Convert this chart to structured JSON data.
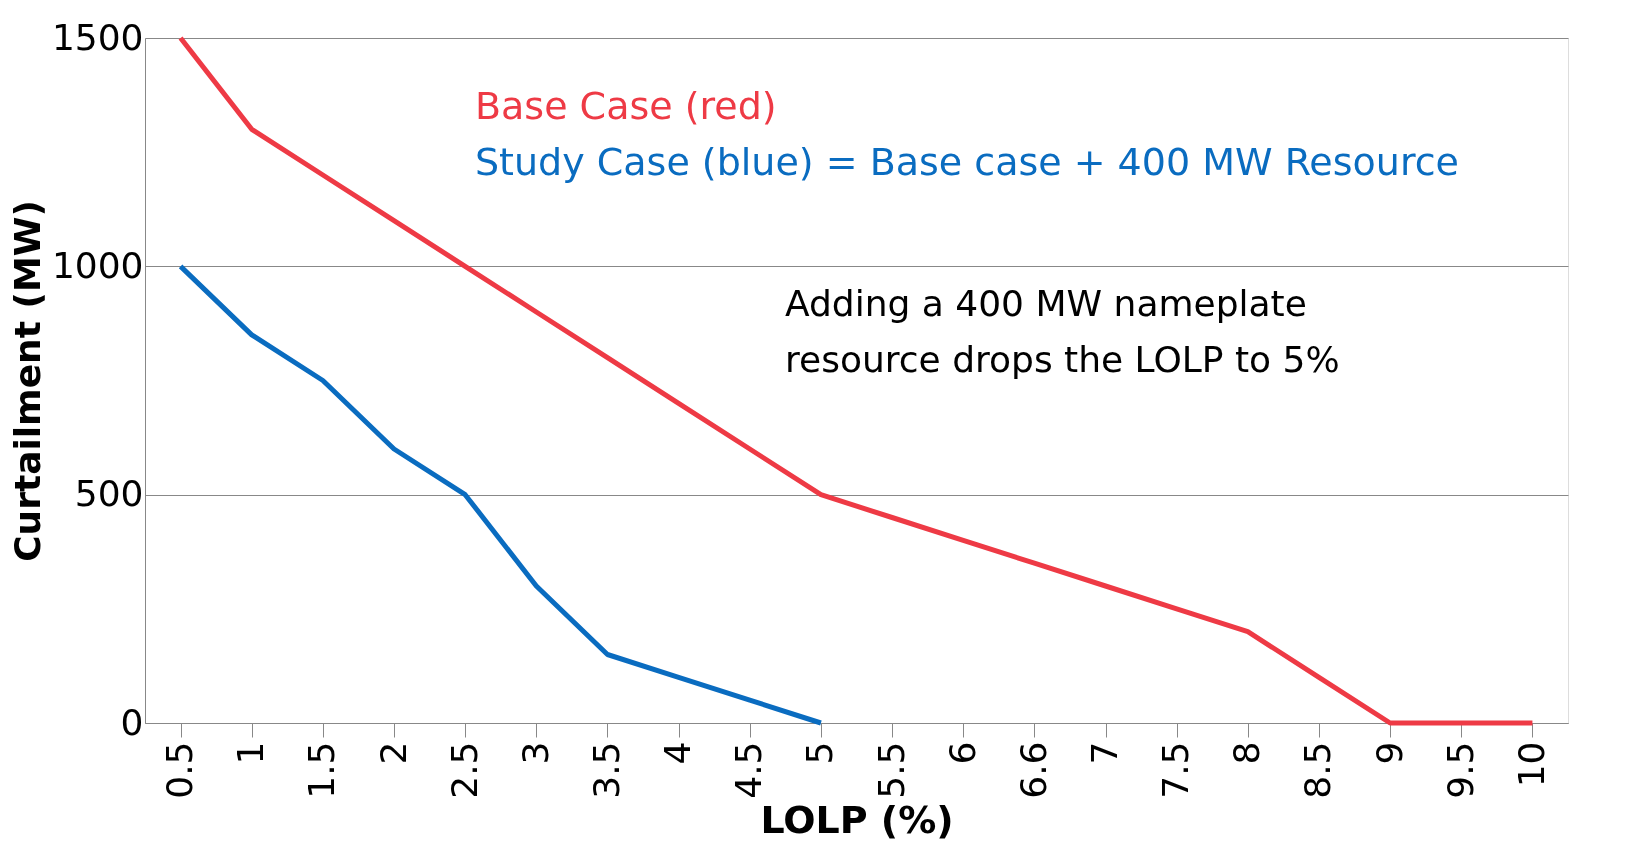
{
  "chart_data": {
    "type": "line",
    "xlabel": "LOLP (%)",
    "ylabel": "Curtailment (MW)",
    "categories": [
      "0.5",
      "1",
      "1.5",
      "2",
      "2.5",
      "3",
      "3.5",
      "4",
      "4.5",
      "5",
      "5.5",
      "6",
      "6.6",
      "7",
      "7.5",
      "8",
      "8.5",
      "9",
      "9.5",
      "10"
    ],
    "series": [
      {
        "name": "Base Case (red)",
        "color": "#ee3a45",
        "values": [
          1500,
          1300,
          1200,
          1100,
          1000,
          900,
          800,
          700,
          600,
          500,
          450,
          400,
          350,
          300,
          250,
          200,
          100,
          0,
          0,
          0
        ]
      },
      {
        "name": "Study Case (blue) = Base case + 400 MW Resource",
        "color": "#0a6cc0",
        "values": [
          1000,
          850,
          750,
          600,
          500,
          300,
          150,
          100,
          50,
          0,
          null,
          null,
          null,
          null,
          null,
          null,
          null,
          null,
          null,
          null
        ]
      }
    ],
    "ylim": [
      0,
      1500
    ],
    "yticks": [
      0,
      500,
      1000,
      1500
    ],
    "grid": "y",
    "line_style": "solid",
    "marker": "none",
    "annotations": [
      "Adding a 400 MW nameplate\nresource drops the LOLP to 5%"
    ]
  }
}
